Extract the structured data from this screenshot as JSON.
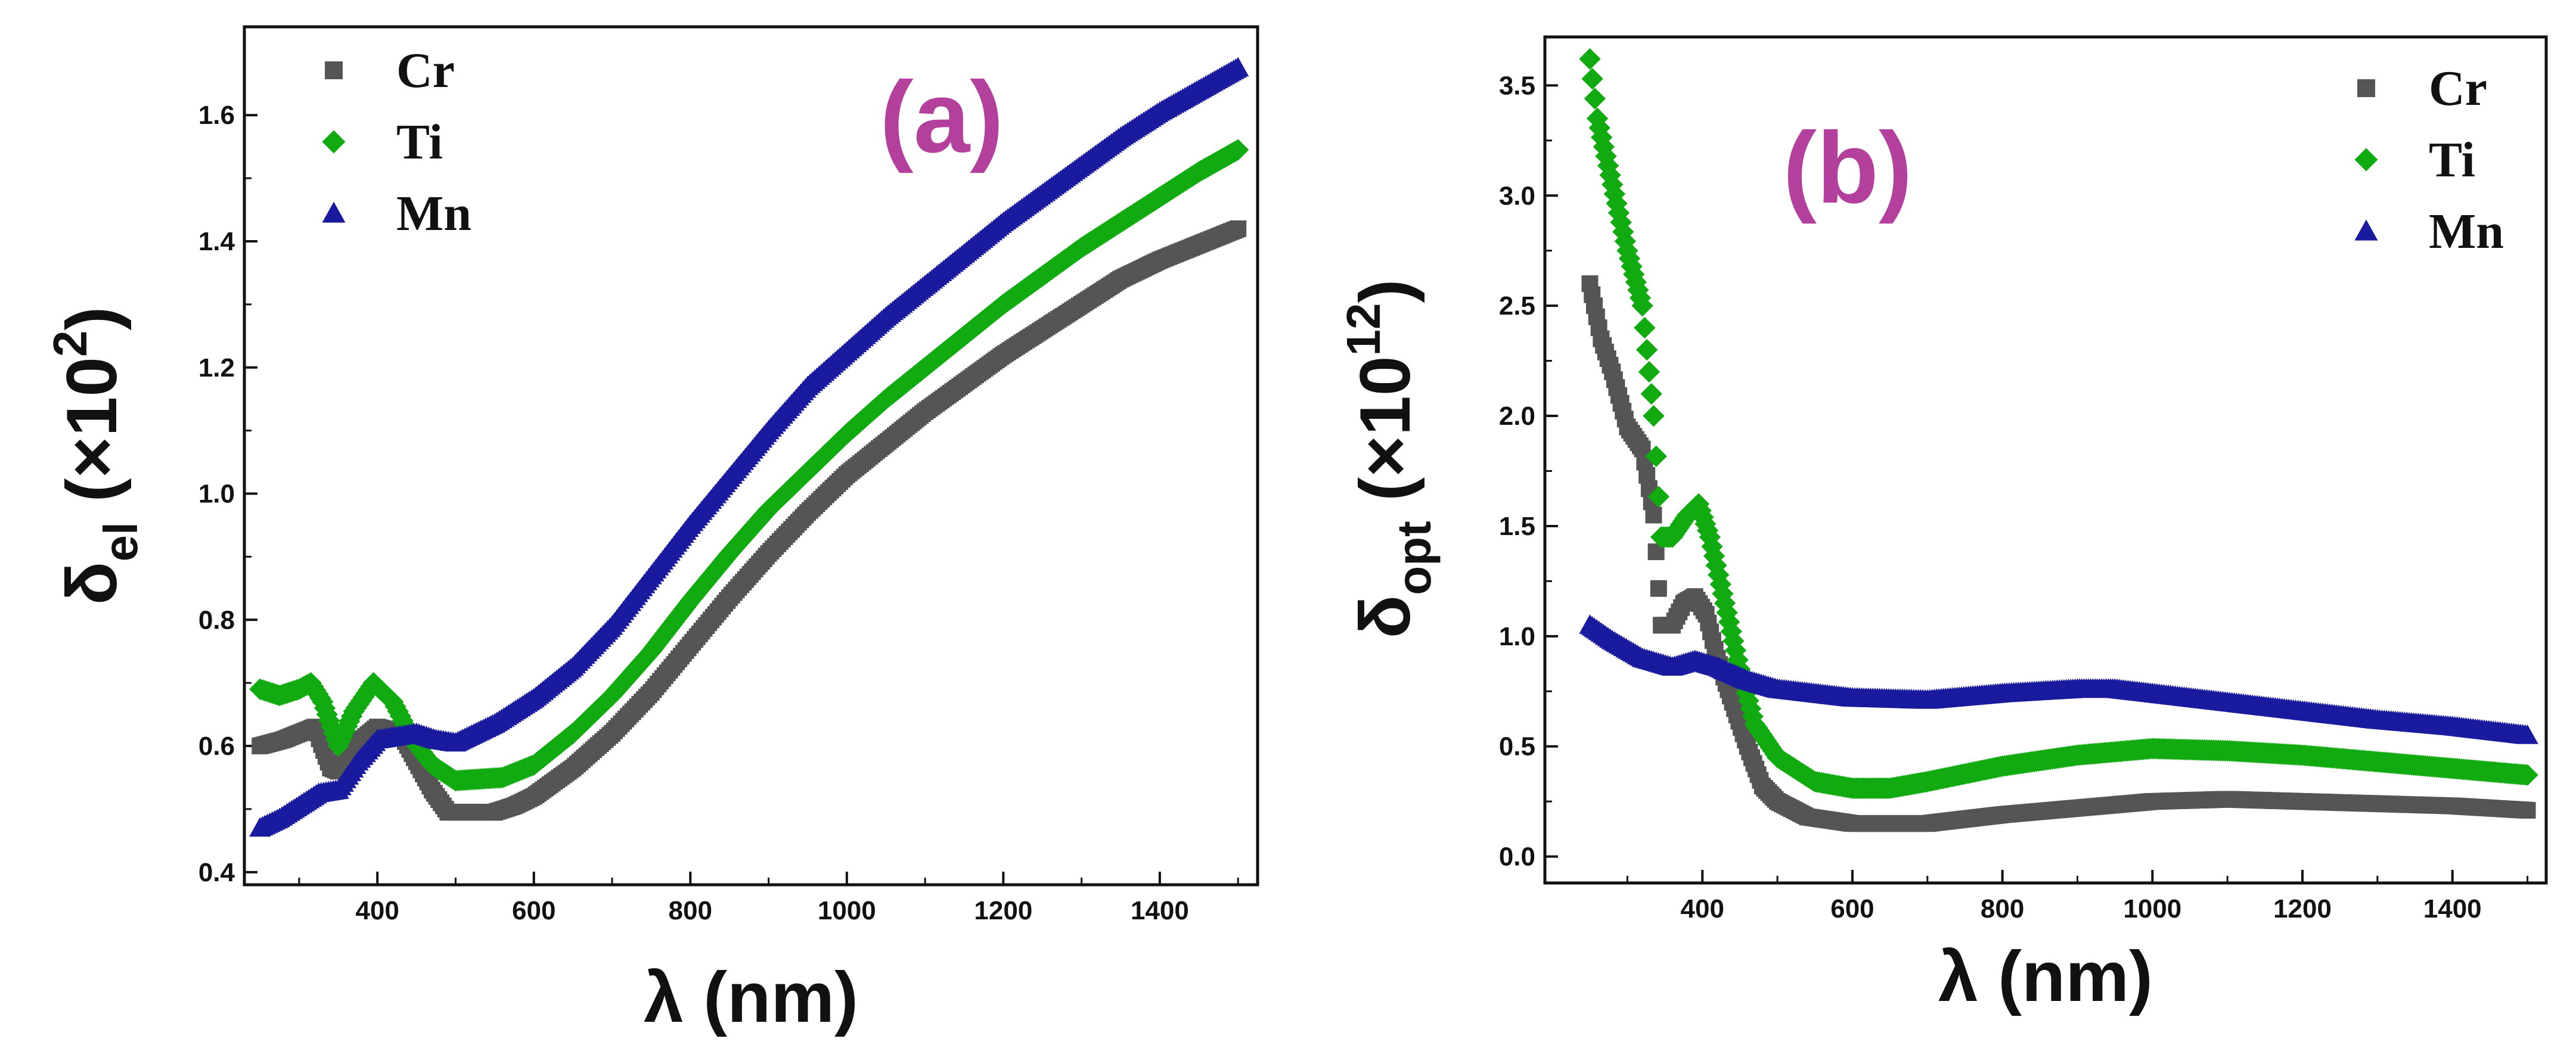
{
  "chart_data": [
    {
      "type": "scatter",
      "panel": "(a)",
      "title": "",
      "xlabel": "λ (nm)",
      "ylabel_main": "δ",
      "ylabel_sub": "el",
      "ylabel_unit_open": " (",
      "ylabel_unit_x": "×10",
      "ylabel_unit_sup": "2",
      "ylabel_unit_close": ")",
      "xlim": [
        230,
        1525
      ],
      "ylim": [
        0.38,
        1.74
      ],
      "xticks": [
        400,
        600,
        800,
        1000,
        1200,
        1400
      ],
      "yticks": [
        0.4,
        0.6,
        0.8,
        1.0,
        1.2,
        1.4,
        1.6
      ],
      "ytick_labels": [
        "0.4",
        "0.6",
        "0.8",
        "1.0",
        "1.2",
        "1.4",
        "1.6"
      ],
      "legend_position": "top-left",
      "series": [
        {
          "name": "Cr",
          "color": "#555555",
          "marker": "square",
          "points": [
            [
              250,
              0.6
            ],
            [
              280,
              0.61
            ],
            [
              300,
              0.62
            ],
            [
              320,
              0.63
            ],
            [
              340,
              0.565
            ],
            [
              350,
              0.56
            ],
            [
              370,
              0.6
            ],
            [
              400,
              0.63
            ],
            [
              430,
              0.62
            ],
            [
              450,
              0.575
            ],
            [
              470,
              0.53
            ],
            [
              490,
              0.495
            ],
            [
              550,
              0.495
            ],
            [
              575,
              0.505
            ],
            [
              600,
              0.52
            ],
            [
              650,
              0.565
            ],
            [
              700,
              0.62
            ],
            [
              750,
              0.685
            ],
            [
              800,
              0.76
            ],
            [
              850,
              0.835
            ],
            [
              900,
              0.905
            ],
            [
              950,
              0.97
            ],
            [
              1000,
              1.03
            ],
            [
              1050,
              1.08
            ],
            [
              1100,
              1.13
            ],
            [
              1150,
              1.175
            ],
            [
              1200,
              1.22
            ],
            [
              1250,
              1.26
            ],
            [
              1300,
              1.3
            ],
            [
              1350,
              1.34
            ],
            [
              1400,
              1.37
            ],
            [
              1450,
              1.395
            ],
            [
              1500,
              1.42
            ]
          ]
        },
        {
          "name": "Ti",
          "color": "#11aa11",
          "marker": "diamond",
          "points": [
            [
              250,
              0.69
            ],
            [
              275,
              0.68
            ],
            [
              300,
              0.69
            ],
            [
              315,
              0.7
            ],
            [
              330,
              0.67
            ],
            [
              350,
              0.6
            ],
            [
              370,
              0.655
            ],
            [
              395,
              0.7
            ],
            [
              420,
              0.67
            ],
            [
              445,
              0.61
            ],
            [
              470,
              0.57
            ],
            [
              500,
              0.545
            ],
            [
              560,
              0.55
            ],
            [
              600,
              0.57
            ],
            [
              650,
              0.62
            ],
            [
              700,
              0.68
            ],
            [
              750,
              0.75
            ],
            [
              800,
              0.83
            ],
            [
              850,
              0.905
            ],
            [
              900,
              0.975
            ],
            [
              950,
              1.035
            ],
            [
              1000,
              1.095
            ],
            [
              1050,
              1.15
            ],
            [
              1100,
              1.2
            ],
            [
              1150,
              1.25
            ],
            [
              1200,
              1.3
            ],
            [
              1250,
              1.345
            ],
            [
              1300,
              1.39
            ],
            [
              1350,
              1.43
            ],
            [
              1400,
              1.47
            ],
            [
              1450,
              1.51
            ],
            [
              1500,
              1.545
            ]
          ]
        },
        {
          "name": "Mn",
          "color": "#1a1a9e",
          "marker": "triangle",
          "points": [
            [
              250,
              0.47
            ],
            [
              275,
              0.485
            ],
            [
              300,
              0.505
            ],
            [
              325,
              0.525
            ],
            [
              350,
              0.53
            ],
            [
              375,
              0.575
            ],
            [
              400,
              0.61
            ],
            [
              425,
              0.615
            ],
            [
              450,
              0.62
            ],
            [
              475,
              0.61
            ],
            [
              500,
              0.605
            ],
            [
              550,
              0.635
            ],
            [
              600,
              0.675
            ],
            [
              650,
              0.725
            ],
            [
              700,
              0.79
            ],
            [
              750,
              0.87
            ],
            [
              800,
              0.95
            ],
            [
              850,
              1.025
            ],
            [
              900,
              1.1
            ],
            [
              950,
              1.17
            ],
            [
              1000,
              1.225
            ],
            [
              1050,
              1.28
            ],
            [
              1100,
              1.33
            ],
            [
              1150,
              1.38
            ],
            [
              1200,
              1.43
            ],
            [
              1250,
              1.475
            ],
            [
              1300,
              1.52
            ],
            [
              1350,
              1.565
            ],
            [
              1400,
              1.605
            ],
            [
              1450,
              1.64
            ],
            [
              1500,
              1.675
            ]
          ]
        }
      ]
    },
    {
      "type": "scatter",
      "panel": "(b)",
      "title": "",
      "xlabel": "λ (nm)",
      "ylabel_main": "δ",
      "ylabel_sub": "opt",
      "ylabel_unit_open": " (",
      "ylabel_unit_x": "×10",
      "ylabel_unit_sup": "12",
      "ylabel_unit_close": ")",
      "xlim": [
        190,
        1525
      ],
      "ylim": [
        -0.12,
        3.72
      ],
      "xticks": [
        400,
        600,
        800,
        1000,
        1200,
        1400
      ],
      "yticks": [
        0.0,
        0.5,
        1.0,
        1.5,
        2.0,
        2.5,
        3.0,
        3.5
      ],
      "ytick_labels": [
        "0.0",
        "0.5",
        "1.0",
        "1.5",
        "2.0",
        "2.5",
        "3.0",
        "3.5"
      ],
      "legend_position": "top-right",
      "series": [
        {
          "name": "Cr",
          "color": "#555555",
          "marker": "square",
          "points": [
            [
              250,
              2.6
            ],
            [
              265,
              2.35
            ],
            [
              280,
              2.2
            ],
            [
              300,
              1.95
            ],
            [
              320,
              1.85
            ],
            [
              335,
              1.55
            ],
            [
              345,
              1.05
            ],
            [
              360,
              1.05
            ],
            [
              375,
              1.15
            ],
            [
              390,
              1.18
            ],
            [
              405,
              1.1
            ],
            [
              420,
              0.9
            ],
            [
              440,
              0.7
            ],
            [
              460,
              0.5
            ],
            [
              480,
              0.32
            ],
            [
              500,
              0.25
            ],
            [
              540,
              0.18
            ],
            [
              600,
              0.15
            ],
            [
              700,
              0.15
            ],
            [
              800,
              0.19
            ],
            [
              900,
              0.22
            ],
            [
              1000,
              0.25
            ],
            [
              1100,
              0.26
            ],
            [
              1200,
              0.25
            ],
            [
              1300,
              0.24
            ],
            [
              1400,
              0.23
            ],
            [
              1500,
              0.21
            ]
          ]
        },
        {
          "name": "Ti",
          "color": "#11aa11",
          "marker": "diamond",
          "points": [
            [
              250,
              3.62
            ],
            [
              260,
              3.35
            ],
            [
              280,
              3.05
            ],
            [
              300,
              2.75
            ],
            [
              320,
              2.5
            ],
            [
              335,
              2.0
            ],
            [
              345,
              1.45
            ],
            [
              360,
              1.45
            ],
            [
              380,
              1.55
            ],
            [
              395,
              1.6
            ],
            [
              410,
              1.45
            ],
            [
              430,
              1.15
            ],
            [
              450,
              0.85
            ],
            [
              470,
              0.6
            ],
            [
              500,
              0.45
            ],
            [
              550,
              0.34
            ],
            [
              600,
              0.31
            ],
            [
              650,
              0.31
            ],
            [
              700,
              0.34
            ],
            [
              800,
              0.41
            ],
            [
              900,
              0.46
            ],
            [
              1000,
              0.49
            ],
            [
              1100,
              0.48
            ],
            [
              1200,
              0.46
            ],
            [
              1300,
              0.43
            ],
            [
              1400,
              0.4
            ],
            [
              1500,
              0.37
            ]
          ]
        },
        {
          "name": "Mn",
          "color": "#1a1a9e",
          "marker": "triangle",
          "points": [
            [
              250,
              1.05
            ],
            [
              280,
              0.98
            ],
            [
              320,
              0.9
            ],
            [
              360,
              0.86
            ],
            [
              390,
              0.89
            ],
            [
              420,
              0.86
            ],
            [
              460,
              0.8
            ],
            [
              500,
              0.76
            ],
            [
              600,
              0.72
            ],
            [
              700,
              0.71
            ],
            [
              800,
              0.74
            ],
            [
              900,
              0.76
            ],
            [
              950,
              0.76
            ],
            [
              1000,
              0.74
            ],
            [
              1100,
              0.7
            ],
            [
              1200,
              0.66
            ],
            [
              1300,
              0.62
            ],
            [
              1400,
              0.59
            ],
            [
              1500,
              0.55
            ]
          ]
        }
      ]
    }
  ]
}
